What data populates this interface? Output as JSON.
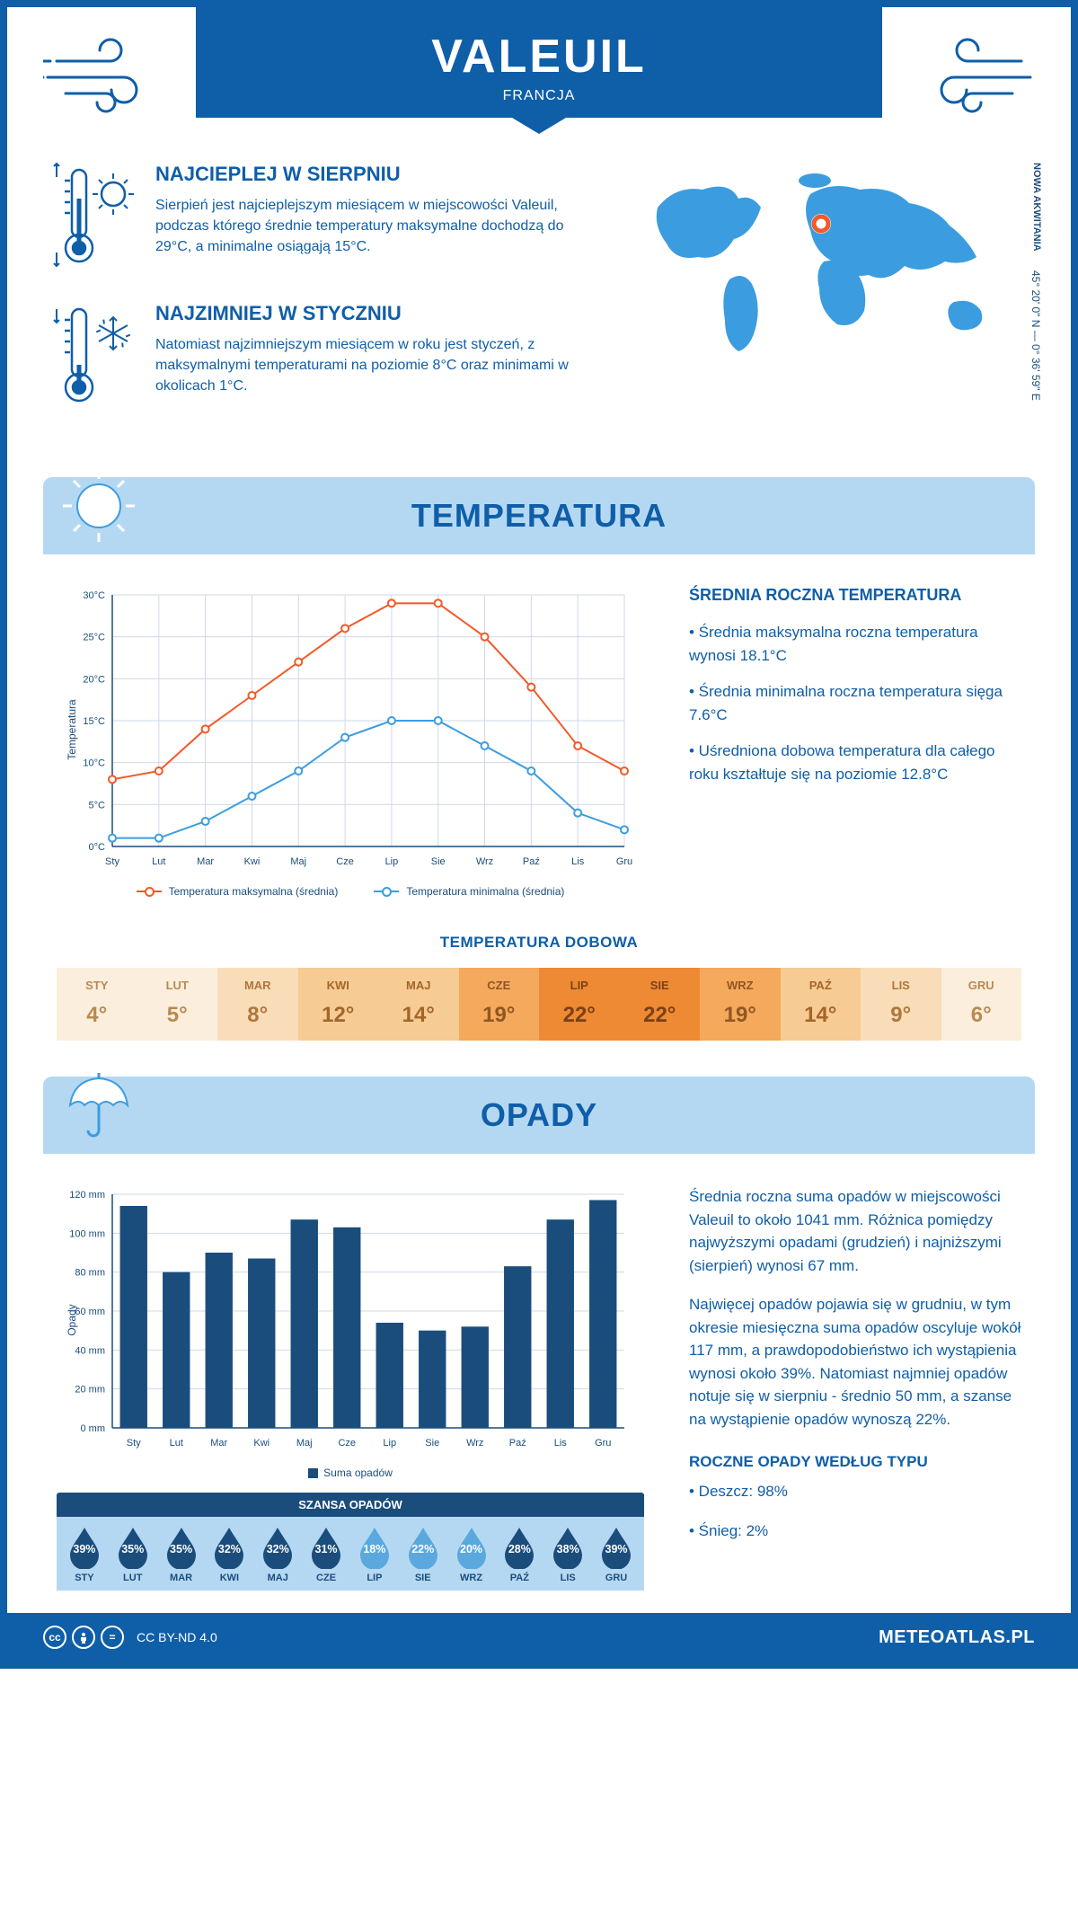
{
  "header": {
    "title": "VALEUIL",
    "country": "FRANCJA"
  },
  "location": {
    "coords": "45° 20' 0\" N — 0° 36' 59\" E",
    "region": "NOWA AKWITANIA"
  },
  "warmest": {
    "title": "NAJCIEPLEJ W SIERPNIU",
    "text": "Sierpień jest najcieplejszym miesiącem w miejscowości Valeuil, podczas którego średnie temperatury maksymalne dochodzą do 29°C, a minimalne osiągają 15°C."
  },
  "coldest": {
    "title": "NAJZIMNIEJ W STYCZNIU",
    "text": "Natomiast najzimniejszym miesiącem w roku jest styczeń, z maksymalnymi temperaturami na poziomie 8°C oraz minimami w okolicach 1°C."
  },
  "months": [
    "Sty",
    "Lut",
    "Mar",
    "Kwi",
    "Maj",
    "Cze",
    "Lip",
    "Sie",
    "Wrz",
    "Paź",
    "Lis",
    "Gru"
  ],
  "months_upper": [
    "STY",
    "LUT",
    "MAR",
    "KWI",
    "MAJ",
    "CZE",
    "LIP",
    "SIE",
    "WRZ",
    "PAŹ",
    "LIS",
    "GRU"
  ],
  "temperature": {
    "section_title": "TEMPERATURA",
    "aside_title": "ŚREDNIA ROCZNA TEMPERATURA",
    "aside_bullets": [
      "• Średnia maksymalna roczna temperatura wynosi 18.1°C",
      "• Średnia minimalna roczna temperatura sięga 7.6°C",
      "• Uśredniona dobowa temperatura dla całego roku kształtuje się na poziomie 12.8°C"
    ],
    "y_label": "Temperatura",
    "max_series": [
      8,
      9,
      14,
      18,
      22,
      26,
      29,
      29,
      25,
      19,
      12,
      9
    ],
    "min_series": [
      1,
      1,
      3,
      6,
      9,
      13,
      15,
      15,
      12,
      9,
      4,
      2
    ],
    "max_color": "#f15a29",
    "min_color": "#3b9de0",
    "grid_color": "#cfd9e6",
    "ylim": [
      0,
      30
    ],
    "ystep": 5,
    "legend_max": "Temperatura maksymalna (średnia)",
    "legend_min": "Temperatura minimalna (średnia)",
    "daily_title": "TEMPERATURA DOBOWA",
    "daily_values": [
      "4°",
      "5°",
      "8°",
      "12°",
      "14°",
      "19°",
      "22°",
      "22°",
      "19°",
      "14°",
      "9°",
      "6°"
    ],
    "daily_bg": [
      "#fbeedd",
      "#fbeedd",
      "#f9ddb9",
      "#f7cb94",
      "#f7cb94",
      "#f4a95c",
      "#ef8a34",
      "#ef8a34",
      "#f4a95c",
      "#f7cb94",
      "#f9ddb9",
      "#fbeedd"
    ],
    "daily_fg": [
      "#b88a50",
      "#b88a50",
      "#b0763a",
      "#a4652a",
      "#a4652a",
      "#915623",
      "#7a4116",
      "#7a4116",
      "#915623",
      "#a4652a",
      "#b0763a",
      "#b88a50"
    ]
  },
  "precipitation": {
    "section_title": "OPADY",
    "y_label": "Opady",
    "values": [
      114,
      80,
      90,
      87,
      107,
      103,
      54,
      50,
      52,
      83,
      107,
      117
    ],
    "bar_color": "#1a4d7c",
    "grid_color": "#cfd9e6",
    "ylim": [
      0,
      120
    ],
    "ystep": 20,
    "legend": "Suma opadów",
    "aside_p1": "Średnia roczna suma opadów w miejscowości Valeuil to około 1041 mm. Różnica pomiędzy najwyższymi opadami (grudzień) i najniższymi (sierpień) wynosi 67 mm.",
    "aside_p2": "Najwięcej opadów pojawia się w grudniu, w tym okresie miesięczna suma opadów oscyluje wokół 117 mm, a prawdopodobieństwo ich wystąpienia wynosi około 39%. Natomiast najmniej opadów notuje się w sierpniu - średnio 50 mm, a szanse na wystąpienie opadów wynoszą 22%.",
    "chance_title": "SZANSA OPADÓW",
    "chance_pct": [
      "39%",
      "35%",
      "35%",
      "32%",
      "32%",
      "31%",
      "18%",
      "22%",
      "20%",
      "28%",
      "38%",
      "39%"
    ],
    "chance_dark": [
      true,
      true,
      true,
      true,
      true,
      true,
      false,
      false,
      false,
      true,
      true,
      true
    ],
    "drop_dark_color": "#1a4d7c",
    "drop_light_color": "#5aa8dd",
    "type_title": "ROCZNE OPADY WEDŁUG TYPU",
    "type_rain": "• Deszcz: 98%",
    "type_snow": "• Śnieg: 2%"
  },
  "footer": {
    "license": "CC BY-ND 4.0",
    "brand": "METEOATLAS.PL"
  },
  "colors": {
    "primary": "#0f5ea8",
    "banner_bg": "#b5d8f2",
    "dark": "#1a4d7c"
  }
}
